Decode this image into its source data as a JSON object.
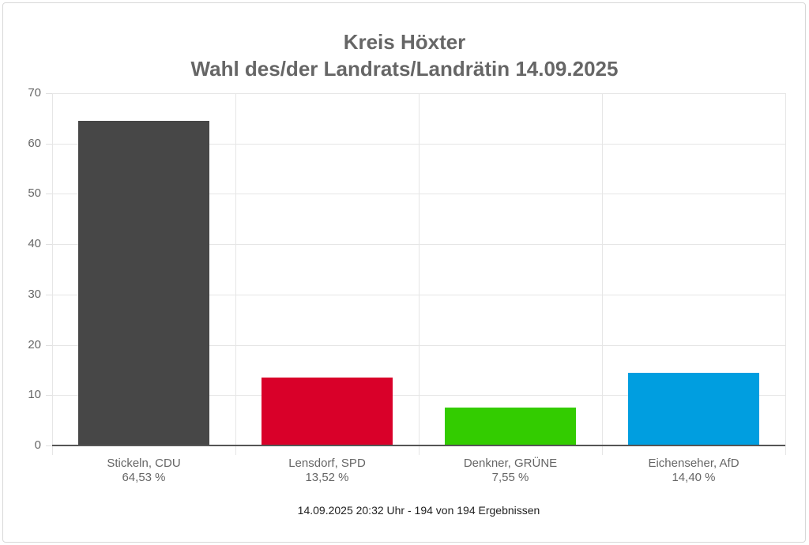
{
  "chart_data": {
    "type": "bar",
    "title": "Kreis Höxter",
    "subtitle": "Wahl des/der Landrats/Landrätin 14.09.2025",
    "categories": [
      "Stickeln, CDU",
      "Lensdorf, SPD",
      "Denkner, GRÜNE",
      "Eichenseher, AfD"
    ],
    "values": [
      64.53,
      13.52,
      7.55,
      14.4
    ],
    "value_labels": [
      "64,53 %",
      "13,52 %",
      "7,55 %",
      "14,40 %"
    ],
    "colors": [
      "#474747",
      "#d90029",
      "#33cc00",
      "#009ee0"
    ],
    "xlabel": "",
    "ylabel": "",
    "ylim": [
      0,
      70
    ],
    "yticks": [
      "70",
      "60",
      "50",
      "40",
      "30",
      "20",
      "10",
      "0"
    ],
    "grid": true,
    "legend": "none"
  },
  "header": {
    "title": "Kreis Höxter",
    "subtitle": "Wahl des/der Landrats/Landrätin 14.09.2025"
  },
  "footer": {
    "status": "14.09.2025 20:32 Uhr - 194 von 194 Ergebnissen"
  }
}
